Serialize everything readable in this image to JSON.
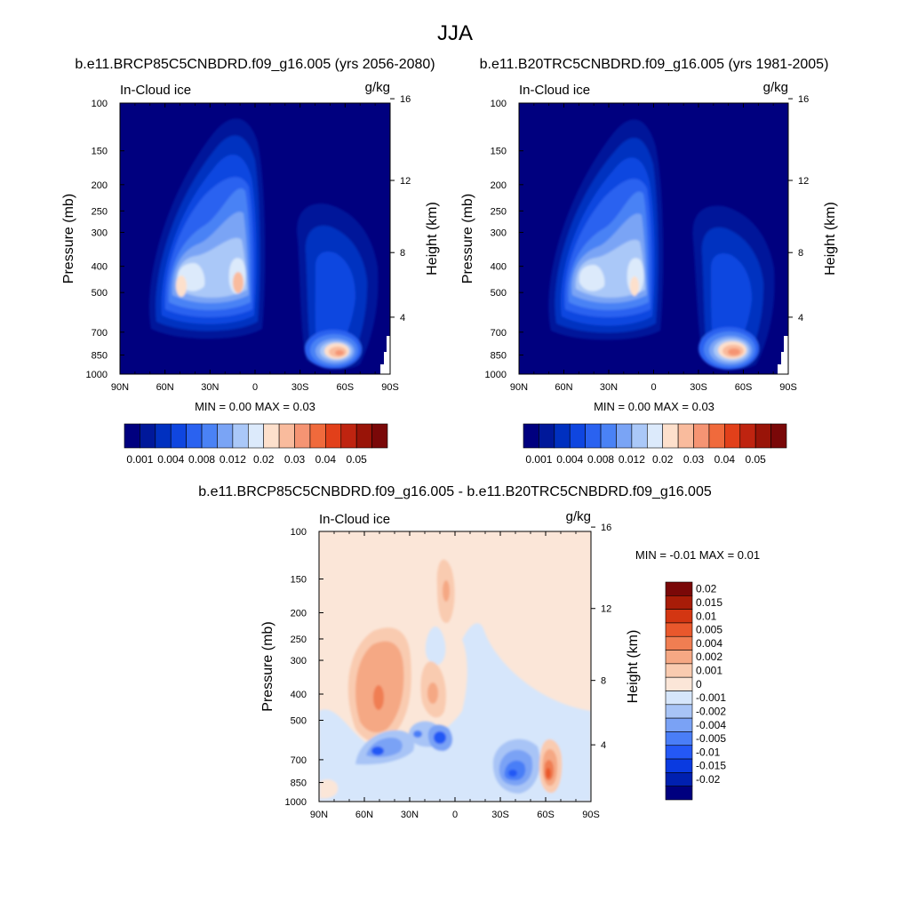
{
  "figure": {
    "title": "JJA"
  },
  "colors": {
    "abs_palette": [
      "#00007f",
      "#00189a",
      "#0030c0",
      "#0f46e0",
      "#2a62f0",
      "#4a82f5",
      "#7aa4f5",
      "#aac8f8",
      "#dceafb",
      "#fde0cc",
      "#f9bb9d",
      "#f59473",
      "#f06a3c",
      "#e2401a",
      "#bf2410",
      "#991408",
      "#7a0808"
    ],
    "diff_palette": [
      "#00007f",
      "#0020b0",
      "#0a3ae0",
      "#2458f5",
      "#4a7ef7",
      "#7aa2f5",
      "#a8c4f6",
      "#d6e6fb",
      "#fbe6d8",
      "#f9cbb0",
      "#f5a884",
      "#f07e52",
      "#e9582c",
      "#d33612",
      "#a81c08",
      "#7a0808"
    ]
  },
  "chart_data": [
    {
      "type": "heatmap",
      "title": "b.e11.BRCP85C5CNBDRD.f09_g16.005 (yrs 2056-2080)",
      "left_label": "In-Cloud ice",
      "units": "g/kg",
      "ylabel": "Pressure (mb)",
      "ylabel_right": "Height (km)",
      "x_ticks": [
        "90N",
        "60N",
        "30N",
        "0",
        "30S",
        "60S",
        "90S"
      ],
      "y_ticks": [
        "100",
        "150",
        "200",
        "250",
        "300",
        "400",
        "500",
        "700",
        "850",
        "1000"
      ],
      "y_ticks_right": [
        "16",
        "12",
        "8",
        "4"
      ],
      "ylim": [
        1000,
        100
      ],
      "xlim": [
        90,
        -90
      ],
      "stats": "MIN =   0.00  MAX =   0.03",
      "colorbar_labels": [
        "0.001",
        "0.004",
        "0.008",
        "0.012",
        "0.02",
        "0.03",
        "0.04",
        "0.05"
      ],
      "colorbar_levels": 17
    },
    {
      "type": "heatmap",
      "title": "b.e11.B20TRC5CNBDRD.f09_g16.005 (yrs 1981-2005)",
      "left_label": "In-Cloud ice",
      "units": "g/kg",
      "ylabel": "Pressure (mb)",
      "ylabel_right": "Height (km)",
      "x_ticks": [
        "90N",
        "60N",
        "30N",
        "0",
        "30S",
        "60S",
        "90S"
      ],
      "y_ticks": [
        "100",
        "150",
        "200",
        "250",
        "300",
        "400",
        "500",
        "700",
        "850",
        "1000"
      ],
      "y_ticks_right": [
        "16",
        "12",
        "8",
        "4"
      ],
      "ylim": [
        1000,
        100
      ],
      "xlim": [
        90,
        -90
      ],
      "stats": "MIN =   0.00  MAX =   0.03",
      "colorbar_labels": [
        "0.001",
        "0.004",
        "0.008",
        "0.012",
        "0.02",
        "0.03",
        "0.04",
        "0.05"
      ],
      "colorbar_levels": 17
    },
    {
      "type": "heatmap",
      "title": "b.e11.BRCP85C5CNBDRD.f09_g16.005 - b.e11.B20TRC5CNBDRD.f09_g16.005",
      "left_label": "In-Cloud ice",
      "units": "g/kg",
      "ylabel": "Pressure (mb)",
      "ylabel_right": "Height (km)",
      "x_ticks": [
        "90N",
        "60N",
        "30N",
        "0",
        "30S",
        "60S",
        "90S"
      ],
      "y_ticks": [
        "100",
        "150",
        "200",
        "250",
        "300",
        "400",
        "500",
        "700",
        "850",
        "1000"
      ],
      "y_ticks_right": [
        "16",
        "12",
        "8",
        "4"
      ],
      "ylim": [
        1000,
        100
      ],
      "xlim": [
        90,
        -90
      ],
      "stats": "MIN =  -0.01  MAX =   0.01",
      "colorbar_labels": [
        "0.02",
        "0.015",
        "0.01",
        "0.005",
        "0.004",
        "0.002",
        "0.001",
        "0",
        "-0.001",
        "-0.002",
        "-0.004",
        "-0.005",
        "-0.01",
        "-0.015",
        "-0.02"
      ],
      "colorbar_levels": 16
    }
  ]
}
